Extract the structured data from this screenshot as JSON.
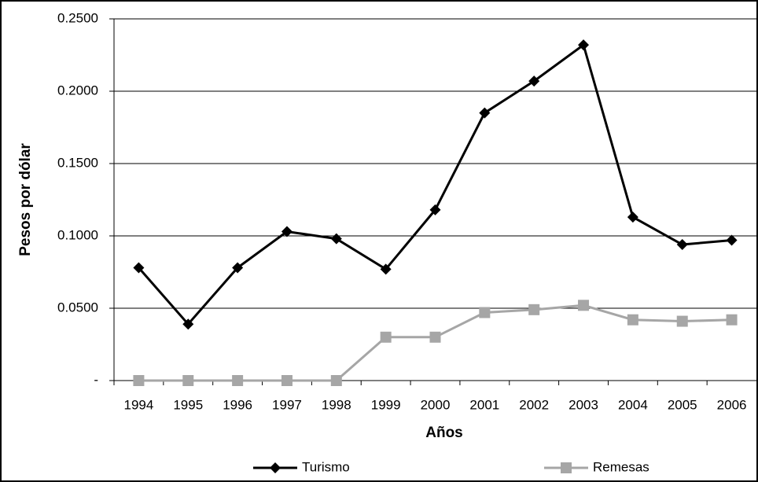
{
  "chart_data": {
    "type": "line",
    "categories": [
      "1994",
      "1995",
      "1996",
      "1997",
      "1998",
      "1999",
      "2000",
      "2001",
      "2002",
      "2003",
      "2004",
      "2005",
      "2006"
    ],
    "series": [
      {
        "name": "Turismo",
        "color": "#000000",
        "marker": "diamond",
        "values": [
          0.078,
          0.039,
          0.078,
          0.103,
          0.098,
          0.077,
          0.118,
          0.185,
          0.207,
          0.232,
          0.113,
          0.094,
          0.097
        ]
      },
      {
        "name": "Remesas",
        "color": "#a6a6a6",
        "marker": "square",
        "values": [
          0,
          0,
          0,
          0,
          0,
          0.03,
          0.03,
          0.047,
          0.049,
          0.052,
          0.042,
          0.041,
          0.042
        ]
      }
    ],
    "xlabel": "Años",
    "ylabel": "Pesos por dólar",
    "ylim": [
      0,
      0.25
    ],
    "yticks": [
      {
        "value": 0,
        "label": "-"
      },
      {
        "value": 0.05,
        "label": "0.0500"
      },
      {
        "value": 0.1,
        "label": "0.1000"
      },
      {
        "value": 0.15,
        "label": "0.1500"
      },
      {
        "value": 0.2,
        "label": "0.2000"
      },
      {
        "value": 0.25,
        "label": "0.2500"
      }
    ],
    "grid": true,
    "legend": "bottom"
  }
}
